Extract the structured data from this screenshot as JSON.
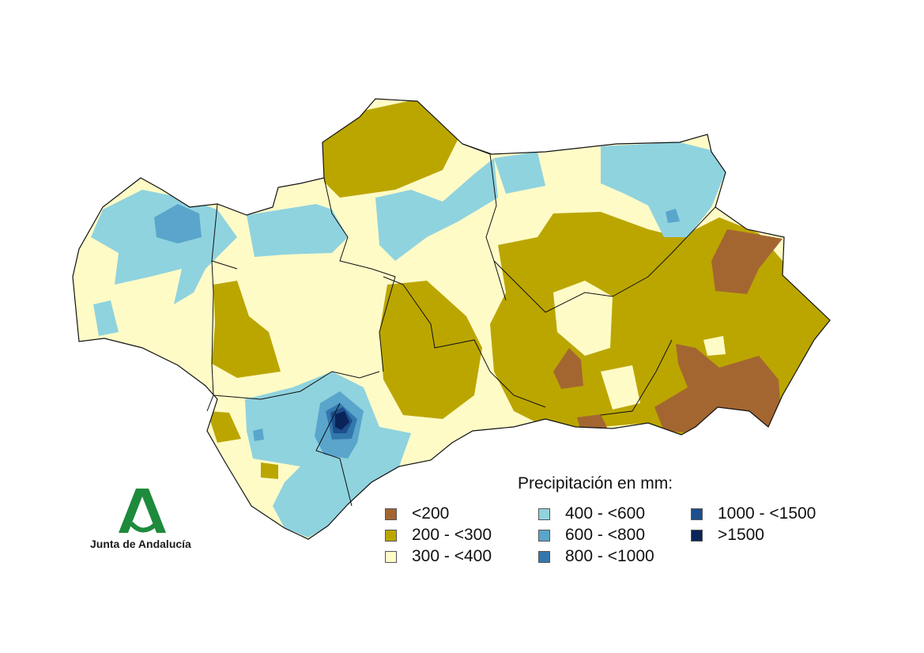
{
  "legend": {
    "title": "Precipitación en mm:",
    "items": [
      {
        "label": "<200",
        "color": "#a46631"
      },
      {
        "label": "200 - <300",
        "color": "#bba600"
      },
      {
        "label": "300 - <400",
        "color": "#fffbc7"
      },
      {
        "label": "400 - <600",
        "color": "#8fd3df"
      },
      {
        "label": "600 - <800",
        "color": "#5aa5cb"
      },
      {
        "label": "800 - <1000",
        "color": "#3378ad"
      },
      {
        "label": "1000 - <1500",
        "color": "#1d4f8e"
      },
      {
        "label": ">1500",
        "color": "#0a2459"
      }
    ]
  },
  "logo": {
    "text": "Junta de Andalucía",
    "color": "#1e8a3c"
  }
}
